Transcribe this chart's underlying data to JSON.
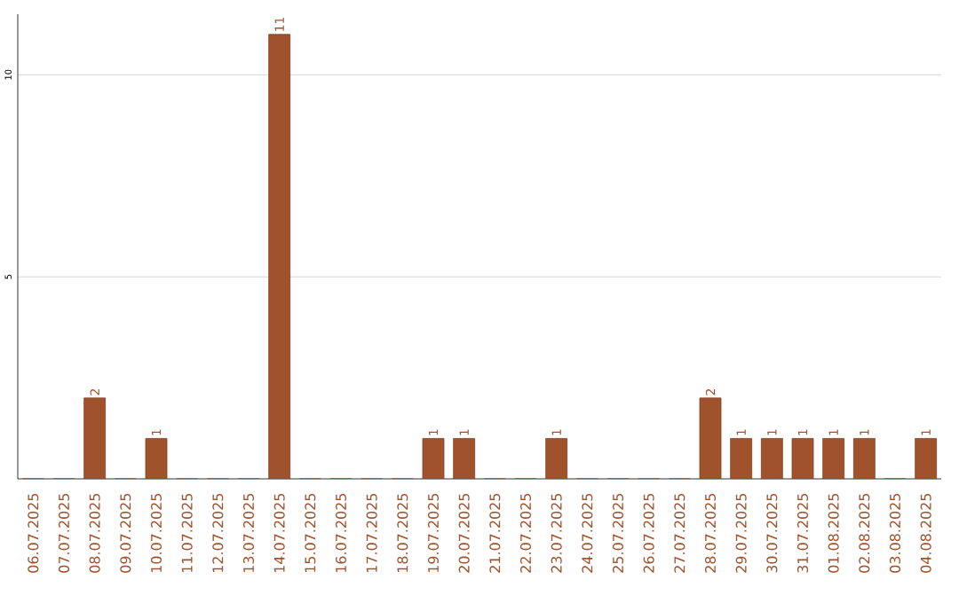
{
  "chart_data": {
    "type": "bar",
    "categories": [
      "06.07.2025",
      "07.07.2025",
      "08.07.2025",
      "09.07.2025",
      "10.07.2025",
      "11.07.2025",
      "12.07.2025",
      "13.07.2025",
      "14.07.2025",
      "15.07.2025",
      "16.07.2025",
      "17.07.2025",
      "18.07.2025",
      "19.07.2025",
      "20.07.2025",
      "21.07.2025",
      "22.07.2025",
      "23.07.2025",
      "24.07.2025",
      "25.07.2025",
      "26.07.2025",
      "27.07.2025",
      "28.07.2025",
      "29.07.2025",
      "30.07.2025",
      "31.07.2025",
      "01.08.2025",
      "02.08.2025",
      "03.08.2025",
      "04.08.2025"
    ],
    "values": [
      0,
      0,
      2,
      0,
      1,
      0,
      0,
      0,
      11,
      0,
      0,
      0,
      0,
      1,
      1,
      0,
      0,
      1,
      0,
      0,
      0,
      0,
      2,
      1,
      1,
      1,
      1,
      1,
      0,
      1
    ],
    "value_labels": [
      null,
      null,
      "2",
      null,
      "1",
      null,
      null,
      null,
      "11",
      null,
      null,
      null,
      null,
      "1",
      "1",
      null,
      null,
      "1",
      null,
      null,
      null,
      null,
      "2",
      "1",
      "1",
      "1",
      "1",
      "1",
      null,
      "1"
    ],
    "color": "#a0522d",
    "ylim": [
      0,
      11.5
    ],
    "yticks": [
      5,
      10
    ],
    "grid": "y"
  }
}
